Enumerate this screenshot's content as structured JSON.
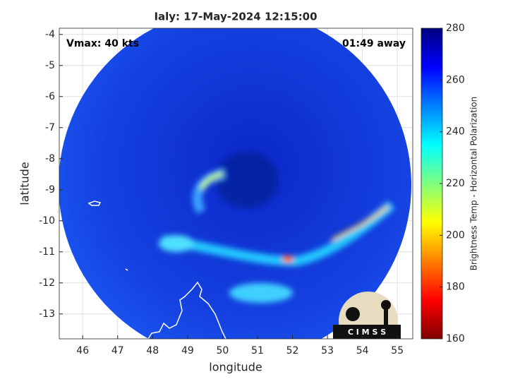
{
  "chart_data": {
    "type": "map",
    "title": "Ialy: 17-May-2024 12:15:00",
    "annotations": {
      "vmax": "Vmax: 40 kts",
      "time_away": "01:49 away"
    },
    "xlabel": "longitude",
    "ylabel": "latitude",
    "xlim": [
      45.33,
      55.44
    ],
    "ylim": [
      -13.8,
      -3.8
    ],
    "xticks": [
      46,
      47,
      48,
      49,
      50,
      51,
      52,
      53,
      54,
      55
    ],
    "yticks": [
      -4,
      -5,
      -6,
      -7,
      -8,
      -9,
      -10,
      -11,
      -12,
      -13
    ],
    "grid": true,
    "colorbar": {
      "label": "Brightness Temp - Horizontal Polarization",
      "lim": [
        160,
        280
      ],
      "ticks": [
        160,
        180,
        200,
        220,
        240,
        260,
        280
      ],
      "colormap": [
        "#7f0000",
        "#ff0000",
        "#ff7f00",
        "#ffff00",
        "#7fff7f",
        "#00ffff",
        "#007fff",
        "#0000ff",
        "#00007f"
      ]
    },
    "logo": "C I M S S"
  }
}
